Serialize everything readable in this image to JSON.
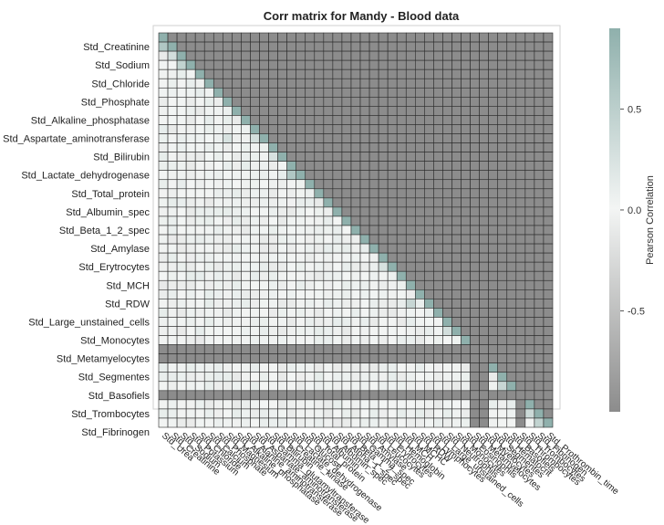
{
  "chart_data": {
    "type": "heatmap",
    "title": "Corr matrix for Mandy - Blood data",
    "colorbar": {
      "title": "Pearson Correlation",
      "ticks": [
        0.5,
        0.0,
        -0.5
      ],
      "tick_labels": [
        "0.5",
        "0.0",
        "-0.5"
      ],
      "range": [
        -1,
        0.9
      ],
      "colors": {
        "low": "#8c8c8c",
        "mid": "#f3f5f4",
        "high": "#8fb0ac"
      }
    },
    "x_labels": [
      "Std_Urea",
      "Std_Creatinine",
      "Std_Sodium",
      "Std_Potassium",
      "Std_Chloride",
      "Std_Calcium",
      "Std_Phosphate",
      "Std_Magnesium",
      "Std_Alkaline_phosphatase",
      "Std_Alanine_aminotransferase",
      "Std_Aspartate_aminotransferase",
      "Std_Gamma_glutamyltransferase",
      "Std_Bilirubin",
      "Std_Creatine_kinase",
      "Std_Lactate_dehydrogenase",
      "Std_Glucose",
      "Std_Total_protein",
      "Std_Albumin",
      "Std_Albumin_spec",
      "Std_Alpha_1_spec",
      "Std_Beta_1_2_spec",
      "Std_Gamma_spec",
      "Std_Amylase",
      "Std_Leucocytes",
      "Std_Erytrocytes",
      "Std_Hemoglobin",
      "Std_MCH",
      "Std_MCHC",
      "Std_RDW",
      "Std_Lymphocytes",
      "Std_Large_unstained_cells",
      "Std_Neutrophils",
      "Std_Monocytes",
      "Std_Eosinophils",
      "Std_Metamyelocytes",
      "Std_Myelocytes",
      "Std_Segmentes",
      "Std_Hematocrit",
      "Std_Basofiels",
      "Std_Thrombocytes",
      "Std_Trombocytes",
      "Std_Fibrinogen",
      "Std_Prothrombin_time"
    ],
    "y_labels_shown": [
      "Std_Creatinine",
      "Std_Sodium",
      "Std_Chloride",
      "Std_Phosphate",
      "Std_Alkaline_phosphatase",
      "Std_Aspartate_aminotransferase",
      "Std_Bilirubin",
      "Std_Lactate_dehydrogenase",
      "Std_Total_protein",
      "Std_Albumin_spec",
      "Std_Beta_1_2_spec",
      "Std_Amylase",
      "Std_Erytrocytes",
      "Std_MCH",
      "Std_RDW",
      "Std_Large_unstained_cells",
      "Std_Monocytes",
      "Std_Metamyelocytes",
      "Std_Segmentes",
      "Std_Basofiels",
      "Std_Trombocytes",
      "Std_Fibrinogen"
    ],
    "lower_triangle": "masked (upper triangle shown as value -1, dark grey)",
    "nan_rows": [
      34,
      35,
      39
    ],
    "nan_cols": [
      34,
      35,
      39
    ],
    "diagonal_value": 0.9,
    "notable_values": [
      {
        "row": 1,
        "col": 0,
        "value": 0.6
      },
      {
        "row": 2,
        "col": 1,
        "value": 0.3
      },
      {
        "row": 3,
        "col": 2,
        "value": 0.45
      },
      {
        "row": 11,
        "col": 7,
        "value": 0.25
      },
      {
        "row": 11,
        "col": 10,
        "value": 0.3
      },
      {
        "row": 13,
        "col": 12,
        "value": 0.25
      },
      {
        "row": 13,
        "col": 14,
        "value": 0.55
      },
      {
        "row": 15,
        "col": 14,
        "value": 0.6
      },
      {
        "row": 25,
        "col": 24,
        "value": 0.25
      },
      {
        "row": 29,
        "col": 27,
        "value": 0.4
      },
      {
        "row": 32,
        "col": 31,
        "value": 0.3
      },
      {
        "row": 38,
        "col": 37,
        "value": 0.4
      },
      {
        "row": 41,
        "col": 40,
        "value": 0.35
      },
      {
        "row": 42,
        "col": 41,
        "value": 0.45
      }
    ]
  }
}
